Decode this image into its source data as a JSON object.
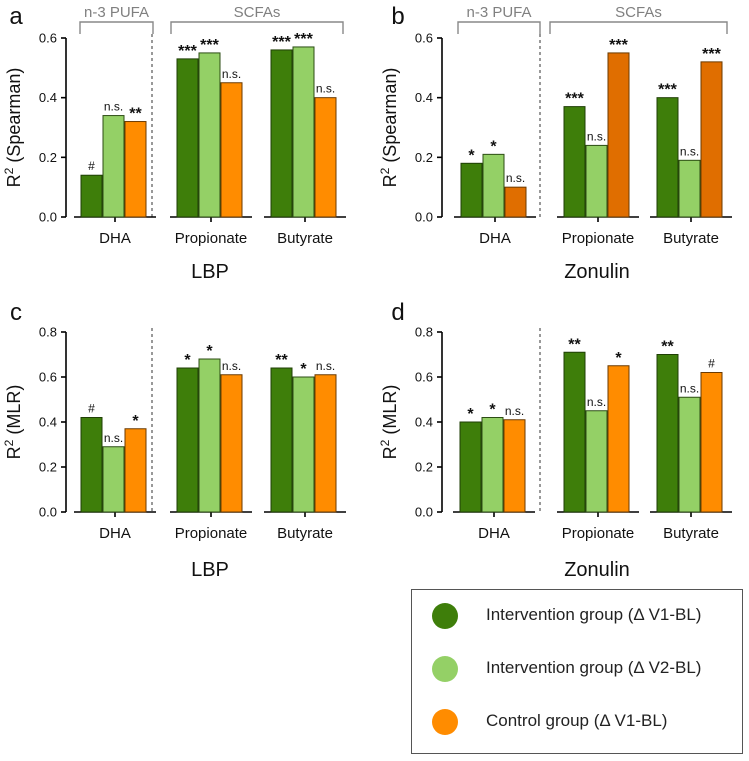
{
  "colors": {
    "intervention_v1": "#3e7e0a",
    "intervention_v2": "#94d066",
    "control": "#ff8c00",
    "control_dark": "#e06e00",
    "axis": "#000000",
    "group_label": "#808080"
  },
  "legend": [
    {
      "label": "Intervention group (Δ V1-BL)",
      "color": "#3e7e0a"
    },
    {
      "label": "Intervention group (Δ V2-BL)",
      "color": "#94d066"
    },
    {
      "label": "Control group (Δ V1-BL)",
      "color": "#ff8c00"
    }
  ],
  "chart_data": [
    {
      "panel": "a",
      "type": "bar",
      "ylabel": "R² (Spearman)",
      "xlabel": "LBP",
      "ylim": [
        0,
        0.6
      ],
      "yticks": [
        "0.0",
        "0.2",
        "0.4",
        "0.6"
      ],
      "categories": [
        "DHA",
        "Propionate",
        "Butyrate"
      ],
      "group_labels": [
        {
          "label": "n-3 PUFA",
          "categories": [
            "DHA"
          ]
        },
        {
          "label": "SCFAs",
          "categories": [
            "Propionate",
            "Butyrate"
          ]
        }
      ],
      "series": [
        {
          "name": "Intervention group (Δ V1-BL)",
          "values": [
            0.14,
            0.53,
            0.56
          ],
          "labels": [
            "#",
            "***",
            "***"
          ]
        },
        {
          "name": "Intervention group (Δ V2-BL)",
          "values": [
            0.34,
            0.55,
            0.57
          ],
          "labels": [
            "n.s.",
            "***",
            "***"
          ]
        },
        {
          "name": "Control group (Δ V1-BL)",
          "values": [
            0.32,
            0.45,
            0.4
          ],
          "labels": [
            "**",
            "n.s.",
            "n.s."
          ]
        }
      ]
    },
    {
      "panel": "b",
      "type": "bar",
      "ylabel": "R² (Spearman)",
      "xlabel": "Zonulin",
      "ylim": [
        0,
        0.6
      ],
      "yticks": [
        "0.0",
        "0.2",
        "0.4",
        "0.6"
      ],
      "categories": [
        "DHA",
        "Propionate",
        "Butyrate"
      ],
      "group_labels": [
        {
          "label": "n-3 PUFA",
          "categories": [
            "DHA"
          ]
        },
        {
          "label": "SCFAs",
          "categories": [
            "Propionate",
            "Butyrate"
          ]
        }
      ],
      "series": [
        {
          "name": "Intervention group (Δ V1-BL)",
          "values": [
            0.18,
            0.37,
            0.4
          ],
          "labels": [
            "*",
            "***",
            "***"
          ]
        },
        {
          "name": "Intervention group (Δ V2-BL)",
          "values": [
            0.21,
            0.24,
            0.19
          ],
          "labels": [
            "*",
            "n.s.",
            "n.s."
          ]
        },
        {
          "name": "Control group (Δ V1-BL)",
          "values": [
            0.1,
            0.55,
            0.52
          ],
          "labels": [
            "n.s.",
            "***",
            "***"
          ]
        }
      ]
    },
    {
      "panel": "c",
      "type": "bar",
      "ylabel": "R² (MLR)",
      "xlabel": "LBP",
      "ylim": [
        0,
        0.8
      ],
      "yticks": [
        "0.0",
        "0.2",
        "0.4",
        "0.6",
        "0.8"
      ],
      "categories": [
        "DHA",
        "Propionate",
        "Butyrate"
      ],
      "group_labels": [],
      "series": [
        {
          "name": "Intervention group (Δ V1-BL)",
          "values": [
            0.42,
            0.64,
            0.64
          ],
          "labels": [
            "#",
            "*",
            "**"
          ]
        },
        {
          "name": "Intervention group (Δ V2-BL)",
          "values": [
            0.29,
            0.68,
            0.6
          ],
          "labels": [
            "n.s.",
            "*",
            "*"
          ]
        },
        {
          "name": "Control group (Δ V1-BL)",
          "values": [
            0.37,
            0.61,
            0.61
          ],
          "labels": [
            "*",
            "n.s.",
            "n.s."
          ]
        }
      ]
    },
    {
      "panel": "d",
      "type": "bar",
      "ylabel": "R² (MLR)",
      "xlabel": "Zonulin",
      "ylim": [
        0,
        0.8
      ],
      "yticks": [
        "0.0",
        "0.2",
        "0.4",
        "0.6",
        "0.8"
      ],
      "categories": [
        "DHA",
        "Propionate",
        "Butyrate"
      ],
      "group_labels": [],
      "series": [
        {
          "name": "Intervention group (Δ V1-BL)",
          "values": [
            0.4,
            0.71,
            0.7
          ],
          "labels": [
            "*",
            "**",
            "**"
          ]
        },
        {
          "name": "Intervention group (Δ V2-BL)",
          "values": [
            0.42,
            0.45,
            0.51
          ],
          "labels": [
            "*",
            "n.s.",
            "n.s."
          ]
        },
        {
          "name": "Control group (Δ V1-BL)",
          "values": [
            0.41,
            0.65,
            0.62
          ],
          "labels": [
            "n.s.",
            "*",
            "#"
          ]
        }
      ]
    }
  ]
}
